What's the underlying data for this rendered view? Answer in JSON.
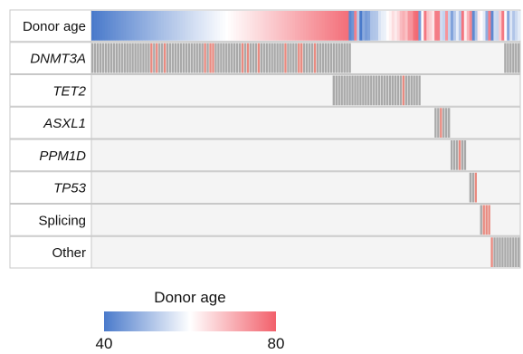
{
  "chart_data": {
    "type": "heatmap",
    "title": "",
    "rows": [
      {
        "key": "age",
        "label": "Donor age",
        "italic": false
      },
      {
        "key": "DNMT3A",
        "label": "DNMT3A",
        "italic": true
      },
      {
        "key": "TET2",
        "label": "TET2",
        "italic": true
      },
      {
        "key": "ASXL1",
        "label": "ASXL1",
        "italic": true
      },
      {
        "key": "PPM1D",
        "label": "PPM1D",
        "italic": true
      },
      {
        "key": "TP53",
        "label": "TP53",
        "italic": true
      },
      {
        "key": "Splicing",
        "label": "Splicing",
        "italic": false
      },
      {
        "key": "Other",
        "label": "Other",
        "italic": false
      }
    ],
    "n_donors": 160,
    "mutation_blocks": [
      {
        "gene": "DNMT3A",
        "donors": [
          0,
          96
        ]
      },
      {
        "gene": "DNMT3A",
        "donors": [
          154,
          159
        ]
      },
      {
        "gene": "TET2",
        "donors": [
          90,
          122
        ]
      },
      {
        "gene": "ASXL1",
        "donors": [
          128,
          133
        ]
      },
      {
        "gene": "PPM1D",
        "donors": [
          134,
          139
        ]
      },
      {
        "gene": "TP53",
        "donors": [
          141,
          143
        ]
      },
      {
        "gene": "Splicing",
        "donors": [
          145,
          148
        ]
      },
      {
        "gene": "Other",
        "donors": [
          149,
          159
        ]
      }
    ],
    "legend": {
      "title": "Donor age",
      "min": 40,
      "max": 80,
      "ticks": [
        "40",
        "80"
      ],
      "colors": [
        "#4a7acb",
        "#ffffff",
        "#f2606b"
      ]
    },
    "colors": {
      "mutation": "#a9a9a9",
      "mutation_accent": "#e98a80",
      "background_cell": "#f4f4f4",
      "frame": "#c8c8c8"
    }
  }
}
